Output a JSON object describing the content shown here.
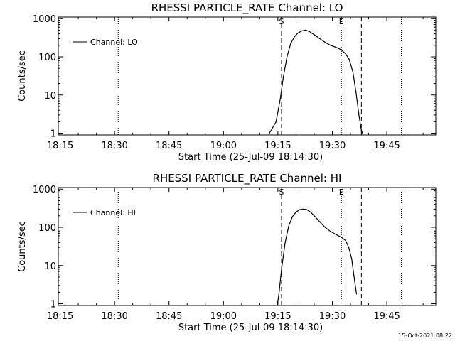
{
  "chart_data": [
    {
      "type": "line",
      "title": "RHESSI PARTICLE_RATE Channel: LO",
      "xlabel": "Start Time (25-Jul-09 18:14:30)",
      "ylabel": "Counts/sec",
      "y_scale": "log",
      "ylim": [
        0.9,
        1100
      ],
      "xlim": [
        "18:14:30",
        "19:58:30"
      ],
      "x_tick_labels": [
        "18:15",
        "18:30",
        "18:45",
        "19:00",
        "19:15",
        "19:30",
        "19:45"
      ],
      "y_tick_labels": [
        "1",
        "10",
        "100",
        "1000"
      ],
      "legend": {
        "entries": [
          "Channel: LO"
        ],
        "placement": "top-left"
      },
      "markers": [
        {
          "label": "S",
          "time": "19:16:00",
          "style": "dashed"
        },
        {
          "label": "E",
          "time": "19:32:30",
          "style": "dotted"
        }
      ],
      "dotted_lines": [
        "18:31:00",
        "19:32:30",
        "19:49:00"
      ],
      "dashed_lines": [
        "19:16:00",
        "19:38:00"
      ],
      "series": [
        {
          "x": [
            "19:12:40",
            "19:14:30",
            "19:15:40",
            "19:16:30",
            "19:17:30",
            "19:18:30",
            "19:19:30",
            "19:20:30",
            "19:21:40",
            "19:22:40",
            "19:23:40",
            "19:25:00",
            "19:26:30",
            "19:28:00",
            "19:29:30",
            "19:30:30",
            "19:31:30",
            "19:32:30",
            "19:33:40",
            "19:34:40",
            "19:35:40",
            "19:36:30",
            "19:37:20",
            "19:38:00",
            "19:38:30"
          ],
          "y": [
            1,
            2,
            8,
            30,
            100,
            220,
            330,
            420,
            480,
            500,
            460,
            380,
            300,
            240,
            200,
            185,
            170,
            150,
            120,
            85,
            40,
            12,
            3,
            1.2,
            0.9
          ]
        }
      ]
    },
    {
      "type": "line",
      "title": "RHESSI PARTICLE_RATE Channel: HI",
      "xlabel": "Start Time (25-Jul-09 18:14:30)",
      "ylabel": "Counts/sec",
      "y_scale": "log",
      "ylim": [
        0.9,
        1100
      ],
      "xlim": [
        "18:14:30",
        "19:58:30"
      ],
      "x_tick_labels": [
        "18:15",
        "18:30",
        "18:45",
        "19:00",
        "19:15",
        "19:30",
        "19:45"
      ],
      "y_tick_labels": [
        "1",
        "10",
        "100",
        "1000"
      ],
      "legend": {
        "entries": [
          "Channel: HI"
        ],
        "placement": "top-left"
      },
      "markers": [
        {
          "label": "S",
          "time": "19:16:00",
          "style": "dashed"
        },
        {
          "label": "E",
          "time": "19:32:30",
          "style": "dotted"
        }
      ],
      "dotted_lines": [
        "18:31:00",
        "19:32:30",
        "19:49:00"
      ],
      "dashed_lines": [
        "19:16:00",
        "19:38:00"
      ],
      "series": [
        {
          "x": [
            "19:14:50",
            "19:15:20",
            "19:16:00",
            "19:17:00",
            "19:18:00",
            "19:19:00",
            "19:20:00",
            "19:21:00",
            "19:22:00",
            "19:23:00",
            "19:24:00",
            "19:25:00",
            "19:26:30",
            "19:28:00",
            "19:29:30",
            "19:31:00",
            "19:32:30",
            "19:33:40",
            "19:34:30",
            "19:35:20",
            "19:36:00",
            "19:36:40"
          ],
          "y": [
            0.9,
            2,
            8,
            40,
            110,
            190,
            250,
            290,
            300,
            290,
            250,
            200,
            140,
            100,
            78,
            65,
            55,
            45,
            30,
            15,
            5,
            1.8
          ]
        }
      ]
    }
  ],
  "timestamp": "15-Oct-2021 08:22"
}
